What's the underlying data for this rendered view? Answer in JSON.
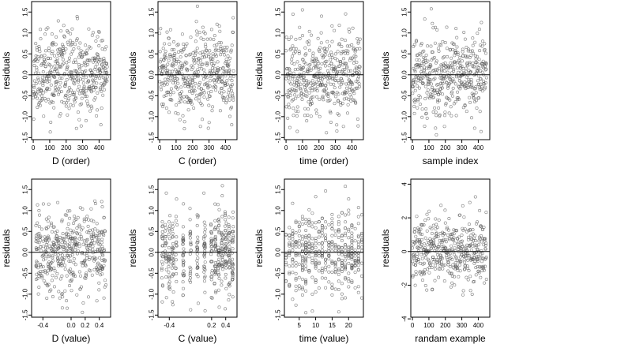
{
  "figure": {
    "background": "#ffffff",
    "point_color": "#555555",
    "axis_color": "#000000"
  },
  "chart_data": [
    {
      "type": "scatter",
      "xlabel": "D (order)",
      "ylabel": "residuals",
      "xlim": [
        -10,
        470
      ],
      "ylim": [
        -1.55,
        1.75
      ],
      "xticks": [
        0,
        100,
        200,
        300,
        400
      ],
      "xtick_labels": [
        "0",
        "100",
        "200",
        "300",
        "400"
      ],
      "yticks": [
        -1.5,
        -1.0,
        -0.5,
        0.0,
        0.5,
        1.0,
        1.5
      ],
      "ytick_labels": [
        "-1.5",
        "-1.0",
        "-0.5",
        "0.0",
        "0.5",
        "1.0",
        "1.5"
      ],
      "ref_line_y": 0,
      "seed": 11,
      "x_kind": "index",
      "n": 450,
      "sd": 0.48,
      "n_points": 450
    },
    {
      "type": "scatter",
      "xlabel": "C (order)",
      "ylabel": "residuals",
      "xlim": [
        -10,
        470
      ],
      "ylim": [
        -1.55,
        1.75
      ],
      "xticks": [
        0,
        100,
        200,
        300,
        400
      ],
      "xtick_labels": [
        "0",
        "100",
        "200",
        "300",
        "400"
      ],
      "yticks": [
        -1.5,
        -1.0,
        -0.5,
        0.0,
        0.5,
        1.0,
        1.5
      ],
      "ytick_labels": [
        "-1.5",
        "-1.0",
        "-0.5",
        "0.0",
        "0.5",
        "1.0",
        "1.5"
      ],
      "ref_line_y": 0,
      "seed": 23,
      "x_kind": "index",
      "n": 450,
      "sd": 0.5,
      "n_points": 450
    },
    {
      "type": "scatter",
      "xlabel": "time (order)",
      "ylabel": "residuals",
      "xlim": [
        -10,
        470
      ],
      "ylim": [
        -1.55,
        1.75
      ],
      "xticks": [
        0,
        100,
        200,
        300,
        400
      ],
      "xtick_labels": [
        "0",
        "100",
        "200",
        "300",
        "400"
      ],
      "yticks": [
        -1.5,
        -1.0,
        -0.5,
        0.0,
        0.5,
        1.0,
        1.5
      ],
      "ytick_labels": [
        "-1.5",
        "-1.0",
        "-0.5",
        "0.0",
        "0.5",
        "1.0",
        "1.5"
      ],
      "ref_line_y": 0,
      "seed": 37,
      "x_kind": "index",
      "n": 450,
      "sd": 0.5,
      "n_points": 450
    },
    {
      "type": "scatter",
      "xlabel": "sample index",
      "ylabel": "residuals",
      "xlim": [
        -10,
        470
      ],
      "ylim": [
        -1.55,
        1.75
      ],
      "xticks": [
        0,
        100,
        200,
        300,
        400
      ],
      "xtick_labels": [
        "0",
        "100",
        "200",
        "300",
        "400"
      ],
      "yticks": [
        -1.5,
        -1.0,
        -0.5,
        0.0,
        0.5,
        1.0,
        1.5
      ],
      "ytick_labels": [
        "-1.5",
        "-1.0",
        "-0.5",
        "0.0",
        "0.5",
        "1.0",
        "1.5"
      ],
      "ref_line_y": 0,
      "seed": 41,
      "x_kind": "index",
      "n": 450,
      "sd": 0.48,
      "n_points": 450
    },
    {
      "type": "scatter",
      "xlabel": "D (value)",
      "ylabel": "residuals",
      "xlim": [
        -0.56,
        0.56
      ],
      "ylim": [
        -1.55,
        1.75
      ],
      "xticks": [
        -0.4,
        0.0,
        0.2,
        0.4
      ],
      "xtick_labels": [
        "-0.4",
        "0.0",
        "0.2",
        "0.4"
      ],
      "yticks": [
        -1.5,
        -1.0,
        -0.5,
        0.0,
        0.5,
        1.0,
        1.5
      ],
      "ytick_labels": [
        "-1.5",
        "-1.0",
        "-0.5",
        "0.0",
        "0.5",
        "1.0",
        "1.5"
      ],
      "ref_line_y": 0,
      "seed": 53,
      "x_kind": "uniform",
      "xmin": -0.5,
      "xmax": 0.5,
      "sd": 0.5,
      "n_points": 450
    },
    {
      "type": "scatter",
      "xlabel": "C (value)",
      "ylabel": "residuals",
      "xlim": [
        -0.56,
        0.56
      ],
      "ylim": [
        -1.55,
        1.75
      ],
      "xticks": [
        -0.4,
        0.2,
        0.4
      ],
      "xtick_labels": [
        "-0.4",
        "0.2",
        "0.4"
      ],
      "yticks": [
        -1.5,
        -1.0,
        -0.5,
        0.0,
        0.5,
        1.0,
        1.5
      ],
      "ytick_labels": [
        "-1.5",
        "-1.0",
        "-0.5",
        "0.0",
        "0.5",
        "1.0",
        "1.5"
      ],
      "ref_line_y": 0,
      "seed": 67,
      "x_kind": "clustered",
      "clusters": [
        -0.5,
        -0.45,
        -0.4,
        -0.35,
        -0.3,
        -0.2,
        -0.1,
        0.0,
        0.1,
        0.2,
        0.25,
        0.3,
        0.35,
        0.4,
        0.45,
        0.5
      ],
      "sd": 0.5,
      "n_points": 450
    },
    {
      "type": "scatter",
      "xlabel": "time (value)",
      "ylabel": "residuals",
      "xlim": [
        0.5,
        24.5
      ],
      "ylim": [
        -1.55,
        1.75
      ],
      "xticks": [
        5,
        10,
        15,
        20
      ],
      "xtick_labels": [
        "5",
        "10",
        "15",
        "20"
      ],
      "yticks": [
        -1.5,
        -1.0,
        -0.5,
        0.0,
        0.5,
        1.0,
        1.5
      ],
      "ytick_labels": [
        "-1.5",
        "-1.0",
        "-0.5",
        "0.0",
        "0.5",
        "1.0",
        "1.5"
      ],
      "ref_line_y": 0,
      "seed": 79,
      "x_kind": "discrete",
      "xmin": 1,
      "xmax": 24,
      "sd": 0.5,
      "n_points": 450
    },
    {
      "type": "scatter",
      "xlabel": "randam example",
      "ylabel": "residuals",
      "xlim": [
        -10,
        470
      ],
      "ylim": [
        -3.9,
        4.3
      ],
      "xticks": [
        0,
        100,
        200,
        300,
        400
      ],
      "xtick_labels": [
        "0",
        "100",
        "200",
        "300",
        "400"
      ],
      "yticks": [
        -4,
        -2,
        0,
        2,
        4
      ],
      "ytick_labels": [
        "-4",
        "-2",
        "0",
        "2",
        "4"
      ],
      "ref_line_y": 0,
      "seed": 97,
      "x_kind": "index",
      "n": 450,
      "sd": 1.0,
      "n_points": 450
    }
  ]
}
